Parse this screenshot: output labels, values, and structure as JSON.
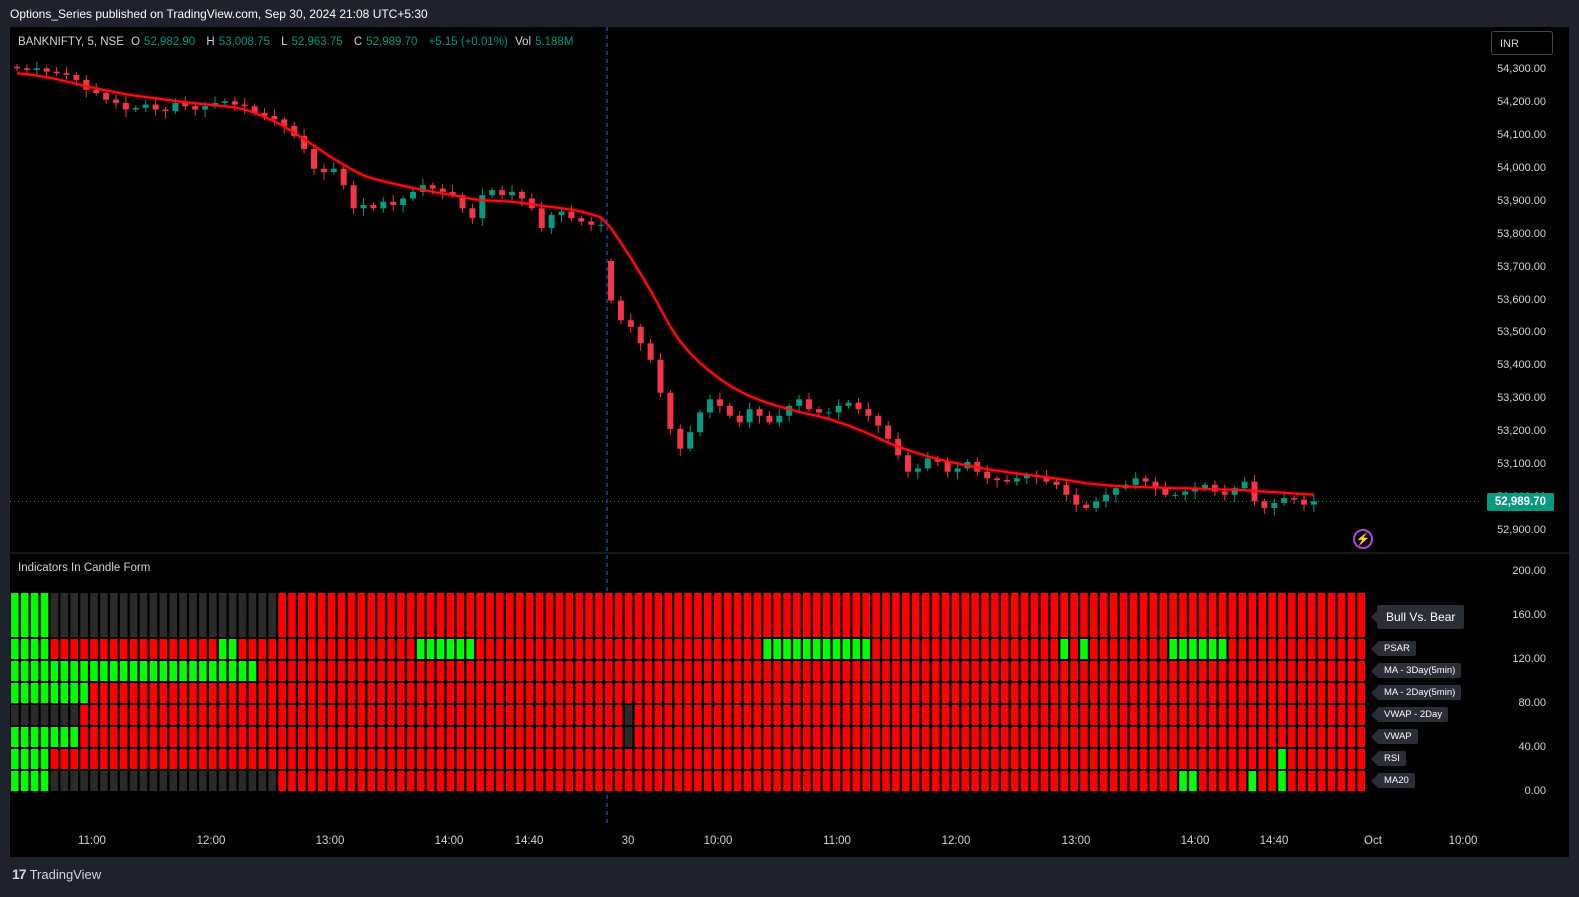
{
  "header": {
    "publish_text": "Options_Series published on TradingView.com, Sep 30, 2024 21:08 UTC+5:30"
  },
  "legend": {
    "symbol": "BANKNIFTY, 5, NSE",
    "o_label": "O",
    "open": "52,982.90",
    "h_label": "H",
    "high": "53,008.75",
    "l_label": "L",
    "low": "52,963.75",
    "c_label": "C",
    "close": "52,989.70",
    "change": "+5.15 (+0.01%)",
    "vol_label": "Vol",
    "volume": "5.188M"
  },
  "currency": "INR",
  "last_price": "52,989.70",
  "price_axis": [
    "54,300.00",
    "54,200.00",
    "54,100.00",
    "54,000.00",
    "53,900.00",
    "53,800.00",
    "53,700.00",
    "53,600.00",
    "53,500.00",
    "53,400.00",
    "53,300.00",
    "53,200.00",
    "53,100.00",
    "53,000.00",
    "52,900.00"
  ],
  "indicator_pane": {
    "title": "Indicators In Candle Form",
    "axis": [
      "200.00",
      "160.00",
      "120.00",
      "80.00",
      "40.00",
      "0.00"
    ],
    "labels": [
      "Bull Vs. Bear",
      "PSAR",
      "MA - 3Day(5min)",
      "MA - 2Day(5min)",
      "VWAP - 2Day",
      "VWAP",
      "RSI",
      "MA20"
    ]
  },
  "time_axis": [
    "11:00",
    "12:00",
    "13:00",
    "14:00",
    "14:40",
    "30",
    "10:00",
    "11:00",
    "12:00",
    "13:00",
    "14:00",
    "14:40",
    "Oct",
    "10:00"
  ],
  "footer": {
    "brand": "TradingView"
  },
  "colors": {
    "bull": "#089981",
    "bear": "#f23645",
    "ma_line": "#ff1010",
    "ind_red": "#ff0000",
    "ind_green": "#00ff00",
    "ind_gray": "#2a2a2a"
  },
  "chart_data": {
    "type": "candlestick",
    "symbol": "BANKNIFTY",
    "interval": "5",
    "exchange": "NSE",
    "y_range": [
      52860,
      54340
    ],
    "day_break_index": 60,
    "close": [
      54305,
      54300,
      54305,
      54295,
      54290,
      54285,
      54270,
      54240,
      54230,
      54210,
      54200,
      54180,
      54185,
      54195,
      54180,
      54175,
      54200,
      54190,
      54180,
      54190,
      54200,
      54205,
      54195,
      54190,
      54170,
      54160,
      54150,
      54130,
      54100,
      54060,
      54000,
      53990,
      54000,
      53950,
      53880,
      53890,
      53880,
      53900,
      53890,
      53910,
      53930,
      53950,
      53940,
      53930,
      53920,
      53880,
      53850,
      53920,
      53935,
      53920,
      53930,
      53910,
      53880,
      53820,
      53860,
      53870,
      53850,
      53840,
      53830,
      53830,
      53600,
      53540,
      53520,
      53470,
      53420,
      53320,
      53210,
      53150,
      53200,
      53260,
      53300,
      53280,
      53250,
      53230,
      53270,
      53250,
      53230,
      53250,
      53280,
      53300,
      53270,
      53260,
      53260,
      53280,
      53290,
      53270,
      53250,
      53220,
      53180,
      53130,
      53080,
      53090,
      53120,
      53110,
      53080,
      53090,
      53110,
      53080,
      53060,
      53055,
      53050,
      53060,
      53070,
      53065,
      53050,
      53040,
      53010,
      52980,
      52970,
      52990,
      53010,
      53030,
      53040,
      53060,
      53050,
      53030,
      53010,
      53010,
      53020,
      53030,
      53040,
      53020,
      53010,
      53030,
      53050,
      52990,
      52970,
      52985,
      53000,
      52995,
      52980,
      52990
    ],
    "ma_line": [
      54290,
      54287,
      54283,
      54278,
      54272,
      54265,
      54258,
      54250,
      54244,
      54238,
      54232,
      54226,
      54222,
      54218,
      54214,
      54210,
      54206,
      54202,
      54199,
      54196,
      54193,
      54190,
      54186,
      54180,
      54170,
      54158,
      54144,
      54128,
      54110,
      54090,
      54070,
      54050,
      54030,
      54012,
      53995,
      53980,
      53970,
      53962,
      53955,
      53948,
      53942,
      53936,
      53930,
      53925,
      53920,
      53914,
      53908,
      53905,
      53903,
      53902,
      53900,
      53896,
      53892,
      53888,
      53884,
      53880,
      53876,
      53870,
      53862,
      53852,
      53820,
      53775,
      53730,
      53680,
      53630,
      53575,
      53520,
      53475,
      53440,
      53410,
      53385,
      53362,
      53342,
      53325,
      53310,
      53298,
      53287,
      53278,
      53270,
      53262,
      53255,
      53248,
      53240,
      53230,
      53220,
      53208,
      53196,
      53182,
      53168,
      53156,
      53146,
      53136,
      53127,
      53119,
      53111,
      53105,
      53099,
      53093,
      53088,
      53083,
      53079,
      53075,
      53071,
      53067,
      53063,
      53059,
      53055,
      53050,
      53045,
      53042,
      53039,
      53037,
      53035,
      53034,
      53033,
      53032,
      53031,
      53030,
      53030,
      53029,
      53028,
      53027,
      53026,
      53025,
      53024,
      53022,
      53020,
      53018,
      53016,
      53014,
      53012,
      53010
    ]
  }
}
